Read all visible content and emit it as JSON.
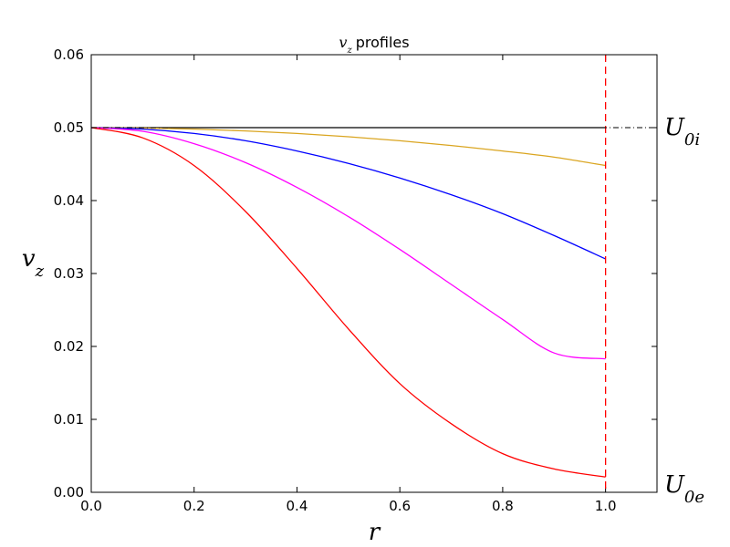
{
  "chart_data": {
    "type": "line",
    "title": {
      "var_main": "v",
      "var_sub": "z",
      "text": "profiles"
    },
    "xlabel": "r",
    "ylabel": {
      "main": "v",
      "sub": "z"
    },
    "xlim": [
      0.0,
      1.1
    ],
    "ylim": [
      0.0,
      0.06
    ],
    "xticks": [
      0.0,
      0.2,
      0.4,
      0.6,
      0.8,
      1.0
    ],
    "yticks": [
      0.0,
      0.01,
      0.02,
      0.03,
      0.04,
      0.05,
      0.06
    ],
    "xtick_labels": [
      "0.0",
      "0.2",
      "0.4",
      "0.6",
      "0.8",
      "1.0"
    ],
    "ytick_labels": [
      "0.00",
      "0.01",
      "0.02",
      "0.03",
      "0.04",
      "0.05",
      "0.06"
    ],
    "grid": false,
    "annotations": [
      {
        "main": "U",
        "sub": "0i",
        "y": 0.05
      },
      {
        "main": "U",
        "sub": "0e",
        "y": 0.0
      }
    ],
    "reference_lines": [
      {
        "orientation": "vertical",
        "x": 1.0,
        "color": "#ff0000",
        "style": "dashed"
      },
      {
        "orientation": "horizontal",
        "y": 0.05,
        "color": "#000000",
        "style": "dashdot"
      },
      {
        "orientation": "horizontal",
        "y": 0.0,
        "color": "#000000",
        "style": "dashdot"
      }
    ],
    "x": [
      0.0,
      0.1,
      0.2,
      0.3,
      0.4,
      0.5,
      0.6,
      0.7,
      0.8,
      0.9,
      1.0
    ],
    "series": [
      {
        "color": "#000000",
        "values": [
          0.05,
          0.05,
          0.05,
          0.05,
          0.05,
          0.05,
          0.05,
          0.05,
          0.05,
          0.05,
          0.05
        ]
      },
      {
        "color": "#daa520",
        "values": [
          0.05,
          0.04995,
          0.0498,
          0.04955,
          0.0492,
          0.04875,
          0.0482,
          0.04755,
          0.0468,
          0.04595,
          0.0448
        ]
      },
      {
        "color": "#0000ff",
        "values": [
          0.05,
          0.0498,
          0.0492,
          0.0482,
          0.0468,
          0.0451,
          0.0431,
          0.0408,
          0.0382,
          0.0352,
          0.032
        ]
      },
      {
        "color": "#ff00ff",
        "values": [
          0.05,
          0.0495,
          0.0478,
          0.0452,
          0.0418,
          0.0378,
          0.0333,
          0.0285,
          0.0237,
          0.0191,
          0.0183
        ]
      },
      {
        "color": "#ff0000",
        "values": [
          0.05,
          0.0486,
          0.0448,
          0.0385,
          0.0307,
          0.0224,
          0.0149,
          0.0094,
          0.0053,
          0.0032,
          0.0021
        ]
      }
    ]
  }
}
